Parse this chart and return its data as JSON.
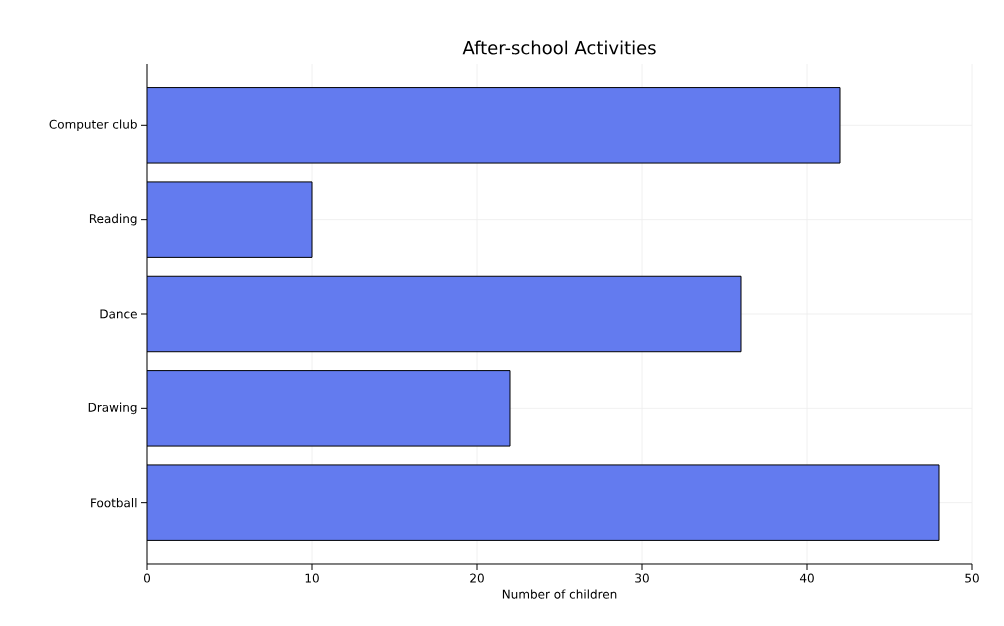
{
  "chart_data": {
    "type": "bar",
    "orientation": "horizontal",
    "title": "After-school Activities",
    "xlabel": "Number of children",
    "categories": [
      "Computer club",
      "Reading",
      "Dance",
      "Drawing",
      "Football"
    ],
    "values": [
      42,
      10,
      36,
      22,
      48
    ],
    "color": "#637bef",
    "xlim": [
      0,
      50
    ],
    "xticks": [
      0,
      10,
      20,
      30,
      40,
      50
    ],
    "grid": true
  }
}
